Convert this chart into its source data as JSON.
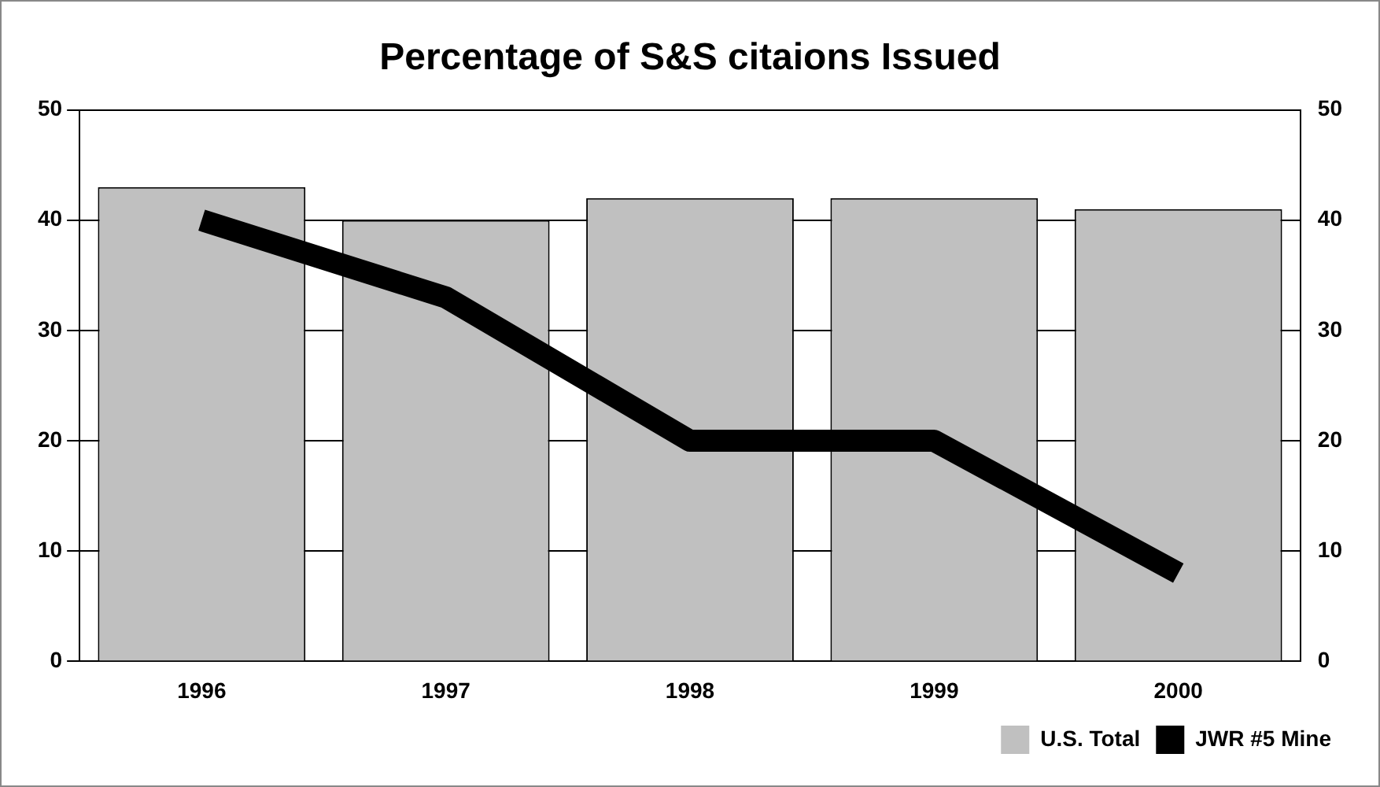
{
  "chart_data": {
    "type": "bar",
    "title": "Percentage of S&S citaions Issued",
    "categories": [
      "1996",
      "1997",
      "1998",
      "1999",
      "2000"
    ],
    "series": [
      {
        "name": "U.S. Total",
        "color": "#c0c0c0",
        "values": [
          43,
          40,
          42,
          42,
          41
        ]
      },
      {
        "name": "JWR #5 Mine",
        "type": "line",
        "axis": "y2",
        "color": "#000000",
        "values": [
          40,
          33,
          20,
          20,
          8
        ]
      }
    ],
    "ylim": [
      0,
      50
    ],
    "yticks": [
      0,
      10,
      20,
      30,
      40,
      50
    ],
    "y2lim": [
      0,
      50
    ],
    "y2ticks": [
      0,
      10,
      20,
      30,
      40,
      50
    ],
    "grid": "y",
    "legend": "bottom right",
    "marker": "none"
  }
}
